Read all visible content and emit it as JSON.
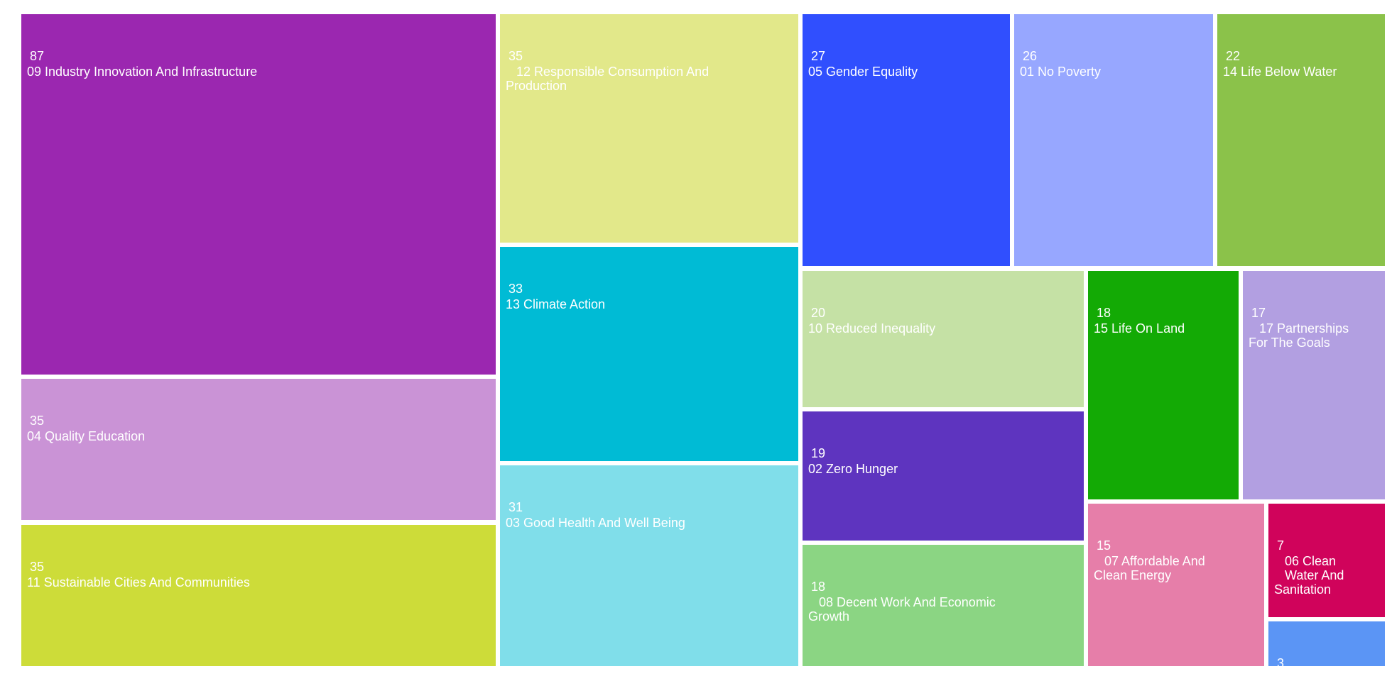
{
  "chart_data": {
    "type": "treemap",
    "title": "",
    "items": [
      {
        "label": "09 Industry Innovation And Infrastructure",
        "value": 87,
        "color": "#9b27b0"
      },
      {
        "label": "04 Quality Education",
        "value": 35,
        "color": "#ca93d6"
      },
      {
        "label": "11 Sustainable Cities And Communities",
        "value": 35,
        "color": "#cddc39"
      },
      {
        "label": "   12 Responsible Consumption And\nProduction",
        "value": 35,
        "color": "#e2e88a"
      },
      {
        "label": "13 Climate Action",
        "value": 33,
        "color": "#00bbd5"
      },
      {
        "label": "03 Good Health And Well Being",
        "value": 31,
        "color": "#80deea"
      },
      {
        "label": "05 Gender Equality",
        "value": 27,
        "color": "#304ffe"
      },
      {
        "label": "01 No Poverty",
        "value": 26,
        "color": "#97a7ff"
      },
      {
        "label": "14 Life Below Water",
        "value": 22,
        "color": "#8bc24a"
      },
      {
        "label": "10 Reduced Inequality",
        "value": 20,
        "color": "#c5e1a5"
      },
      {
        "label": "02 Zero Hunger",
        "value": 19,
        "color": "#5e34bf"
      },
      {
        "label": "   08 Decent Work And Economic\nGrowth",
        "value": 18,
        "color": "#8bd583"
      },
      {
        "label": "15 Life On Land",
        "value": 18,
        "color": "#13aa05"
      },
      {
        "label": "   17 Partnerships\nFor The Goals",
        "value": 17,
        "color": "#b29fe1"
      },
      {
        "label": "   07 Affordable And\nClean Energy",
        "value": 15,
        "color": "#e67ea9"
      },
      {
        "label": "   06 Clean\n   Water And\nSanitation",
        "value": 7,
        "color": "#d0035b"
      },
      {
        "label": "",
        "value": 3,
        "color": "#5b95f5"
      }
    ]
  }
}
